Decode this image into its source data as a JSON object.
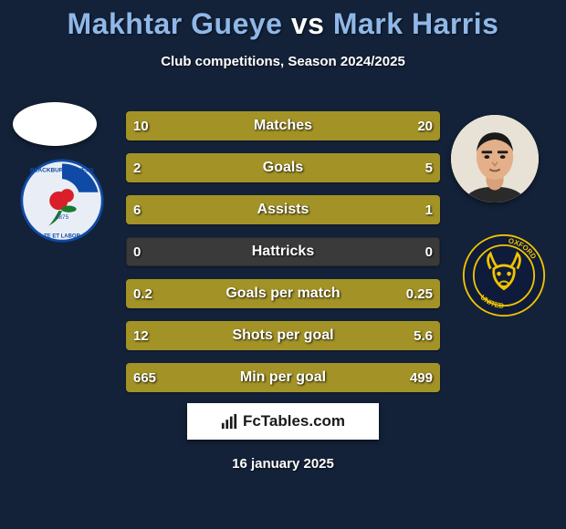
{
  "background_color": "#132239",
  "title": {
    "player1": "Makhtar Gueye",
    "vs": "vs",
    "player2": "Mark Harris",
    "player_color": "#8fb8e8",
    "vs_color": "#ffffff",
    "fontsize": 32
  },
  "subtitle": "Club competitions, Season 2024/2025",
  "colors": {
    "bar_track": "#3a3a3a",
    "bar_left": "#a39326",
    "bar_right": "#a39326",
    "text": "#ffffff"
  },
  "bars": [
    {
      "label": "Matches",
      "left_val": "10",
      "right_val": "20",
      "left_pct": 33,
      "right_pct": 67
    },
    {
      "label": "Goals",
      "left_val": "2",
      "right_val": "5",
      "left_pct": 29,
      "right_pct": 71
    },
    {
      "label": "Assists",
      "left_val": "6",
      "right_val": "1",
      "left_pct": 86,
      "right_pct": 14
    },
    {
      "label": "Hattricks",
      "left_val": "0",
      "right_val": "0",
      "left_pct": 0,
      "right_pct": 0
    },
    {
      "label": "Goals per match",
      "left_val": "0.2",
      "right_val": "0.25",
      "left_pct": 44,
      "right_pct": 56
    },
    {
      "label": "Shots per goal",
      "left_val": "12",
      "right_val": "5.6",
      "left_pct": 68,
      "right_pct": 32
    },
    {
      "label": "Min per goal",
      "left_val": "665",
      "right_val": "499",
      "left_pct": 57,
      "right_pct": 43
    }
  ],
  "left_side": {
    "avatar_bg": "#ffffff",
    "crest_name": "Blackburn Rovers",
    "crest_primary": "#0f4aa6",
    "crest_secondary": "#d81f2a",
    "crest_ring": "#e9eef6"
  },
  "right_side": {
    "avatar_bg": "#e8e2d6",
    "crest_name": "Oxford United",
    "crest_primary": "#0f1b3a",
    "crest_secondary": "#f0c400",
    "crest_ring": "#0f1b3a"
  },
  "footer": {
    "site": "FcTables.com",
    "date": "16 january 2025"
  }
}
